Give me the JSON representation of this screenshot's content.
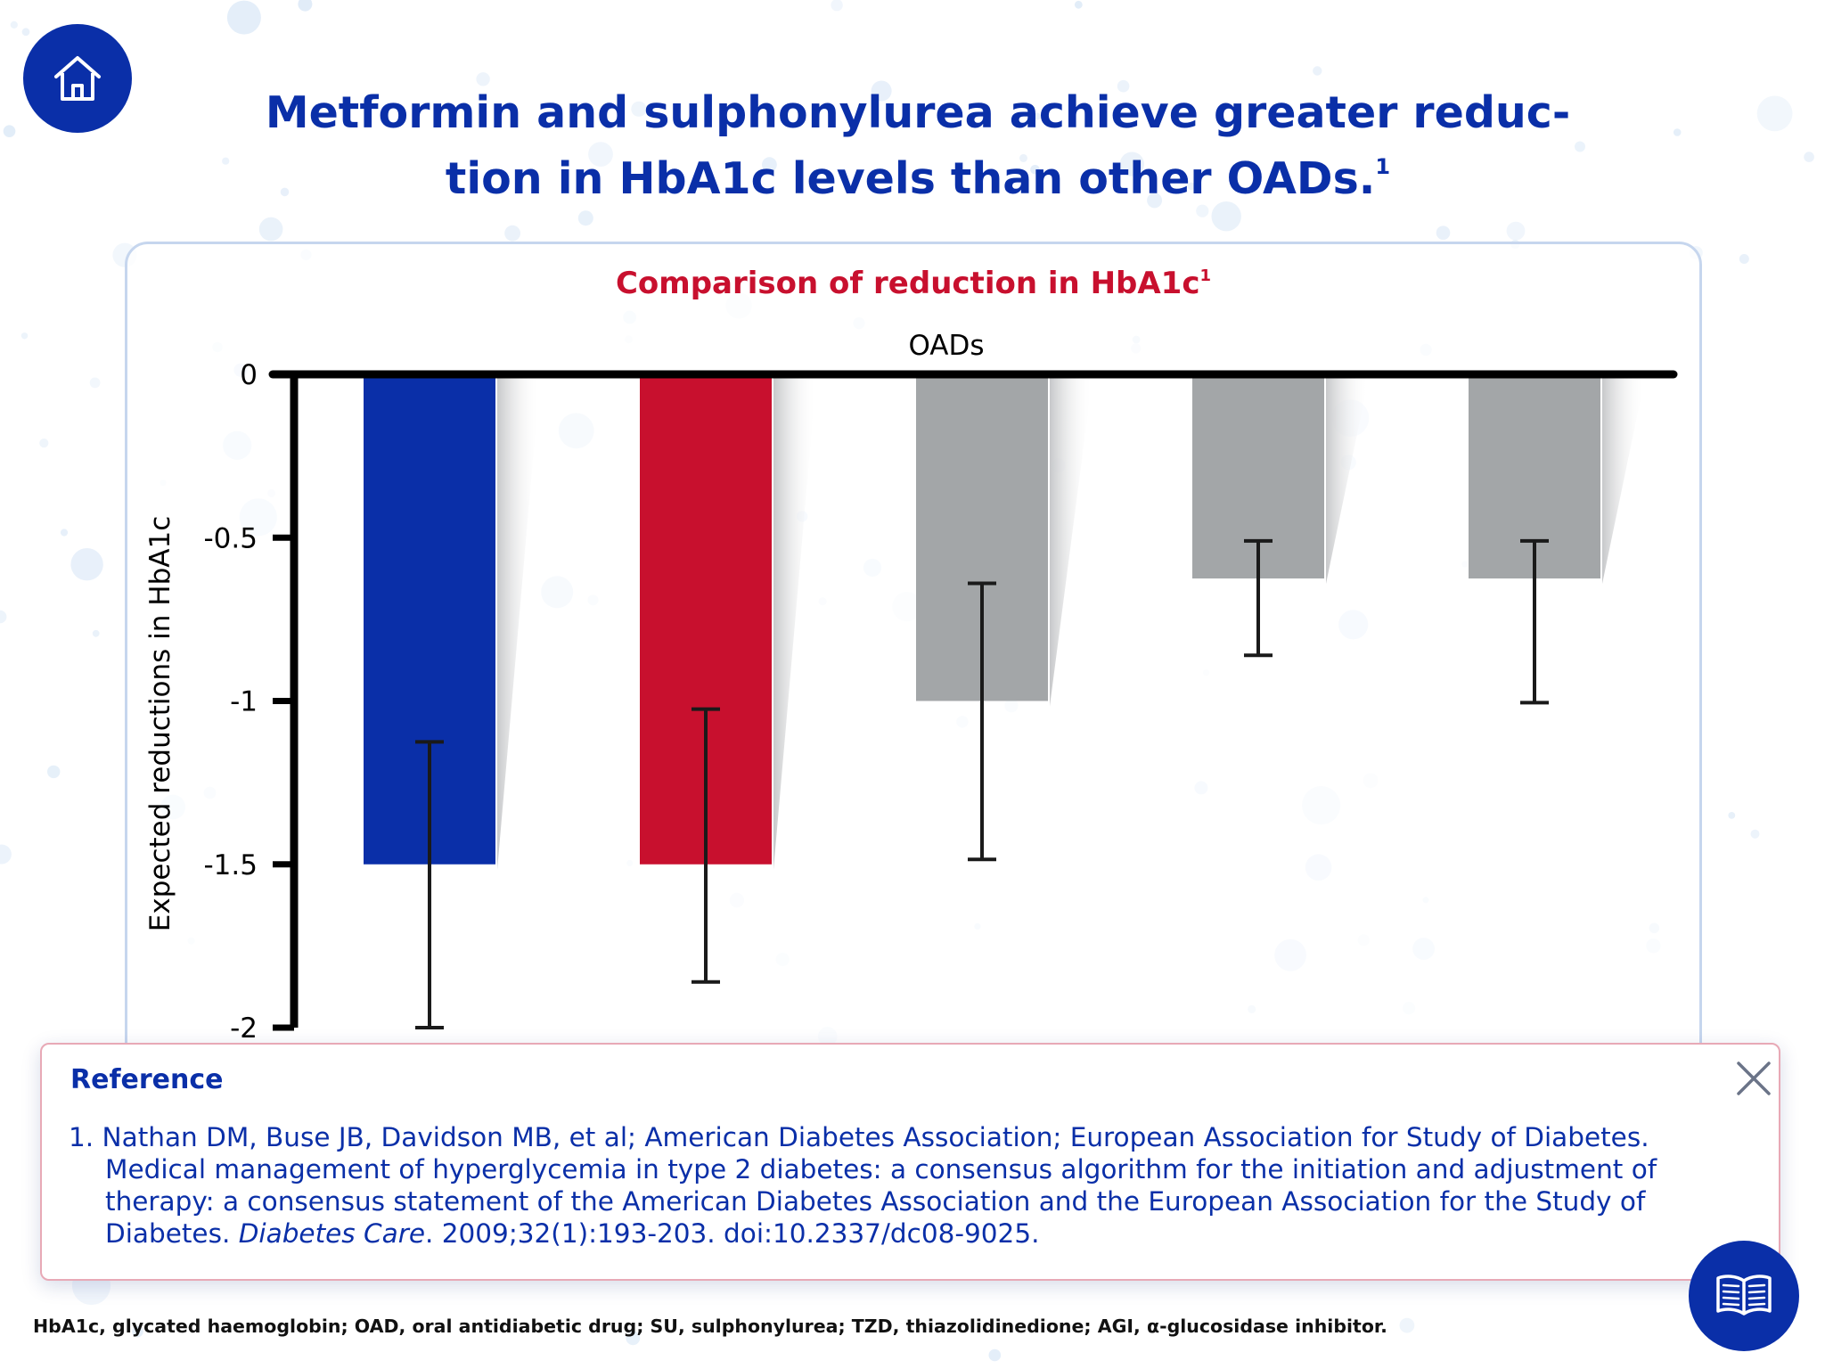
{
  "nav": {
    "home_icon": "home-icon",
    "library_icon": "book-icon",
    "close_icon": "close-icon"
  },
  "title": {
    "line1": "Metformin and sulphonylurea achieve greater reduc-",
    "line2": "tion in HbA1c levels than other OADs.",
    "sup": "1"
  },
  "colors": {
    "brand_blue": "#0a2fa8",
    "brand_red": "#c8102e",
    "bar_grey": "#a3a6a8",
    "background_dot": "#dce9f7"
  },
  "chart_data": {
    "type": "bar",
    "title": "Comparison of reduction in HbA1c",
    "title_sup": "1",
    "xlabel": "OADs",
    "ylabel": "Expected reductions in HbA1c",
    "categories": [
      "",
      "",
      "",
      "",
      ""
    ],
    "values": [
      -1.5,
      -1.5,
      -1.0,
      -0.625,
      -0.625
    ],
    "error_high": [
      -1.125,
      -1.025,
      -0.64,
      -0.51,
      -0.51
    ],
    "error_low": [
      -2.0,
      -1.86,
      -1.485,
      -0.86,
      -1.005
    ],
    "bar_colors": [
      "#0a2fa8",
      "#c8102e",
      "#a3a6a8",
      "#a3a6a8",
      "#a3a6a8"
    ],
    "ylim": [
      -2,
      0
    ],
    "yticks": [
      0,
      -0.5,
      -1,
      -1.5,
      -2
    ],
    "ytick_labels": [
      "0",
      "-0.5",
      "-1",
      "-1.5",
      "-2"
    ],
    "grid": false,
    "legend": "none"
  },
  "reference": {
    "heading": "Reference",
    "items": [
      {
        "number": "1.",
        "text": "Nathan DM, Buse JB, Davidson MB, et al; American Diabetes Association; European Association for Study of Diabetes. Medical management of hyperglycemia in type 2 diabetes: a consensus algorithm for the initiation and adjustment of therapy: a consensus statement of the American Diabetes Association and the European Association for the Study of Diabetes. ",
        "journal": "Diabetes Care",
        "citation": ". 2009;32(1):193-203. doi:10.2337/dc08-9025."
      }
    ]
  },
  "footnote": "HbA1c, glycated haemoglobin; OAD, oral antidiabetic drug; SU, sulphonylurea; TZD, thiazolidinedione; AGI, α-glucosidase inhibitor."
}
